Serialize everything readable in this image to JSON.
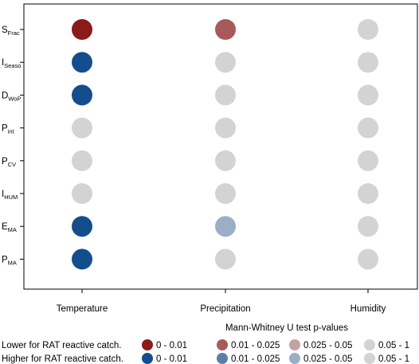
{
  "chart_data": {
    "type": "scatter",
    "title": "",
    "xlabel": "",
    "ylabel": "",
    "categories": [
      "Temperature",
      "Precipitation",
      "Humidity"
    ],
    "rows": [
      {
        "main": "S",
        "sub": "Frac"
      },
      {
        "main": "I",
        "sub": "Seaso"
      },
      {
        "main": "D",
        "sub": "WoP"
      },
      {
        "main": "P",
        "sub": "int"
      },
      {
        "main": "P",
        "sub": "CV"
      },
      {
        "main": "I",
        "sub": "HUM"
      },
      {
        "main": "E",
        "sub": "MA"
      },
      {
        "main": "P",
        "sub": "MA"
      }
    ],
    "cells": [
      [
        "lower_0_0.01",
        "lower_0.01_0.025",
        "ns"
      ],
      [
        "higher_0_0.01",
        "ns",
        "ns"
      ],
      [
        "higher_0_0.01",
        "ns",
        "ns"
      ],
      [
        "ns",
        "ns",
        "ns"
      ],
      [
        "ns",
        "ns",
        "ns"
      ],
      [
        "ns",
        "ns",
        "ns"
      ],
      [
        "higher_0_0.01",
        "higher_0.025_0.05",
        "ns"
      ],
      [
        "higher_0_0.01",
        "ns",
        "ns"
      ]
    ],
    "colors": {
      "lower_0_0.01": "#8b1a1a",
      "lower_0.01_0.025": "#a85a5a",
      "lower_0.025_0.05": "#c4a2a2",
      "higher_0_0.01": "#144d8c",
      "higher_0.01_0.025": "#5b7fa6",
      "higher_0.025_0.05": "#9aaec7",
      "ns": "#d3d3d3"
    },
    "legend": {
      "title": "Mann-Whitney U test p-values",
      "row_labels": [
        "Lower for RAT reactive catch.",
        "Higher for RAT reactive catch."
      ],
      "entries": [
        {
          "key": "lower_0_0.01",
          "label": "0 - 0.01",
          "row": 0,
          "col": 0
        },
        {
          "key": "lower_0.01_0.025",
          "label": "0.01 - 0.025",
          "row": 0,
          "col": 1
        },
        {
          "key": "lower_0.025_0.05",
          "label": "0.025 - 0.05",
          "row": 0,
          "col": 2
        },
        {
          "key": "ns",
          "label": "0.05 - 1",
          "row": 0,
          "col": 3
        },
        {
          "key": "higher_0_0.01",
          "label": "0 - 0.01",
          "row": 1,
          "col": 0
        },
        {
          "key": "higher_0.01_0.025",
          "label": "0.01 - 0.025",
          "row": 1,
          "col": 1
        },
        {
          "key": "higher_0.025_0.05",
          "label": "0.025 - 0.05",
          "row": 1,
          "col": 2
        },
        {
          "key": "ns",
          "label": "0.05 - 1",
          "row": 1,
          "col": 3
        }
      ]
    }
  }
}
